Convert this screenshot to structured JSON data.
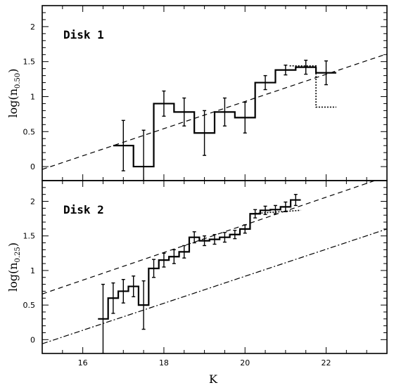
{
  "chart_data": [
    {
      "type": "line",
      "panel_label": "Disk 1",
      "ylabel_main": "log(n",
      "ylabel_sub": "0.50",
      "ylabel_close": ")",
      "xlim": [
        15,
        23.5
      ],
      "ylim": [
        -0.2,
        2.3
      ],
      "x_ticks": [
        16,
        18,
        20,
        22
      ],
      "y_ticks": [
        0,
        0.5,
        1,
        1.5,
        2
      ],
      "y_tick_labels": [
        "0",
        "0.5",
        "1",
        "1.5",
        "2"
      ],
      "histogram": {
        "edges": [
          16.75,
          17.25,
          17.75,
          18.25,
          18.75,
          19.25,
          19.75,
          20.25,
          20.75,
          21.25,
          21.75,
          22.25
        ],
        "values": [
          0.3,
          0.0,
          0.9,
          0.78,
          0.48,
          0.78,
          0.7,
          1.2,
          1.38,
          1.42,
          1.34
        ]
      },
      "errorbars": {
        "x": [
          17.0,
          17.5,
          18.0,
          18.5,
          19.0,
          19.5,
          20.0,
          20.5,
          21.0,
          21.5,
          22.0
        ],
        "y": [
          0.3,
          0.0,
          0.9,
          0.78,
          0.48,
          0.78,
          0.7,
          1.2,
          1.38,
          1.42,
          1.34
        ],
        "err": [
          0.36,
          0.52,
          0.18,
          0.2,
          0.32,
          0.2,
          0.22,
          0.1,
          0.07,
          0.1,
          0.17
        ]
      },
      "dotted_line": {
        "x": [
          21.1,
          21.75,
          21.75,
          22.25
        ],
        "y": [
          1.44,
          1.44,
          0.85,
          0.85
        ]
      },
      "dashed_line": {
        "x": [
          15,
          23.5
        ],
        "y": [
          -0.04,
          1.61
        ]
      }
    },
    {
      "type": "line",
      "panel_label": "Disk 2",
      "ylabel_main": "log(n",
      "ylabel_sub": "0.25",
      "ylabel_close": ")",
      "xlim": [
        15,
        23.5
      ],
      "ylim": [
        -0.2,
        2.3
      ],
      "x_ticks": [
        16,
        18,
        20,
        22
      ],
      "x_tick_labels": [
        "16",
        "18",
        "20",
        "22"
      ],
      "xlabel": "K",
      "y_ticks": [
        0,
        0.5,
        1,
        1.5,
        2
      ],
      "y_tick_labels": [
        "0",
        "0.5",
        "1",
        "1.5",
        "2"
      ],
      "histogram": {
        "edges": [
          16.375,
          16.625,
          16.875,
          17.125,
          17.375,
          17.625,
          17.875,
          18.125,
          18.375,
          18.625,
          18.875,
          19.125,
          19.375,
          19.625,
          19.875,
          20.125,
          20.375,
          20.625,
          20.875,
          21.125,
          21.375
        ],
        "values": [
          0.3,
          0.6,
          0.7,
          0.77,
          0.5,
          1.03,
          1.15,
          1.2,
          1.27,
          1.48,
          1.43,
          1.45,
          1.48,
          1.52,
          1.6,
          1.82,
          1.87,
          1.88,
          1.92,
          2.02
        ]
      },
      "errorbars": {
        "x": [
          16.5,
          16.75,
          17.0,
          17.25,
          17.5,
          17.75,
          18.0,
          18.25,
          18.5,
          18.75,
          19.0,
          19.25,
          19.5,
          19.75,
          20.0,
          20.25,
          20.5,
          20.75,
          21.0,
          21.25
        ],
        "y": [
          0.3,
          0.6,
          0.7,
          0.77,
          0.5,
          1.03,
          1.15,
          1.2,
          1.27,
          1.48,
          1.43,
          1.45,
          1.48,
          1.52,
          1.6,
          1.82,
          1.87,
          1.88,
          1.92,
          2.02
        ],
        "err": [
          0.5,
          0.22,
          0.17,
          0.15,
          0.35,
          0.13,
          0.1,
          0.1,
          0.09,
          0.08,
          0.07,
          0.07,
          0.07,
          0.06,
          0.06,
          0.06,
          0.06,
          0.06,
          0.07,
          0.08
        ]
      },
      "dotted_line": {
        "x": [
          20.125,
          21.375
        ],
        "y": [
          1.82,
          1.87
        ]
      },
      "dashed_line": {
        "x": [
          15,
          23.5
        ],
        "y": [
          0.66,
          2.36
        ]
      },
      "dashdot_line": {
        "x": [
          15,
          23.5
        ],
        "y": [
          -0.06,
          1.6
        ]
      }
    }
  ]
}
